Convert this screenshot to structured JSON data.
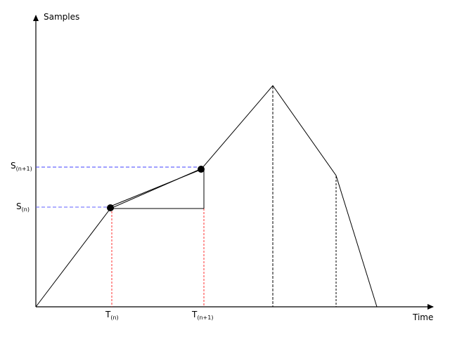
{
  "axes": {
    "y_label": "Samples",
    "x_label": "Time"
  },
  "y_ticks": [
    {
      "base": "S",
      "sub": "(n+1)"
    },
    {
      "base": "S",
      "sub": "(n)"
    }
  ],
  "x_ticks": [
    {
      "base": "T",
      "sub": "(n)"
    },
    {
      "base": "T",
      "sub": "(n+1)"
    }
  ],
  "colors": {
    "curve": "#000000",
    "horizontal_guides": "#4040ff",
    "vertical_guides_marked": "#ff3030",
    "vertical_guides_peaks": "#000000",
    "sample_points": "#000000"
  }
}
